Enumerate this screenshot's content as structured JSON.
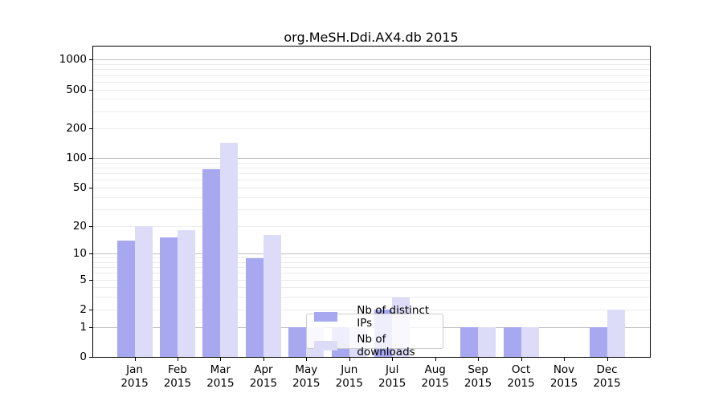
{
  "chart_data": {
    "type": "bar",
    "title": "org.MeSH.Ddi.AX4.db 2015",
    "year_label": "2015",
    "categories": [
      "Jan",
      "Feb",
      "Mar",
      "Apr",
      "May",
      "Jun",
      "Jul",
      "Aug",
      "Sep",
      "Oct",
      "Nov",
      "Dec"
    ],
    "series": [
      {
        "name": "Nb of distinct IPs",
        "color": "#a8a8f0",
        "values": [
          14,
          15,
          78,
          9,
          1,
          1,
          2,
          0,
          1,
          1,
          0,
          1
        ]
      },
      {
        "name": "Nb of downloads",
        "color": "#dcdcf8",
        "values": [
          20,
          18,
          145,
          16,
          1,
          1,
          3,
          0,
          1,
          1,
          0,
          2
        ]
      }
    ],
    "y_scale": "log1p",
    "ylim": [
      0,
      1400
    ],
    "y_ticks": [
      0,
      1,
      2,
      5,
      10,
      20,
      50,
      100,
      200,
      500,
      1000
    ],
    "major_gridlines": [
      1,
      10,
      100,
      1000
    ],
    "minor_gridlines": [
      2,
      3,
      4,
      5,
      6,
      7,
      8,
      9,
      20,
      30,
      40,
      50,
      60,
      70,
      80,
      90,
      200,
      300,
      400,
      500,
      600,
      700,
      800,
      900
    ],
    "grid": true,
    "legend_position": "lower center"
  }
}
